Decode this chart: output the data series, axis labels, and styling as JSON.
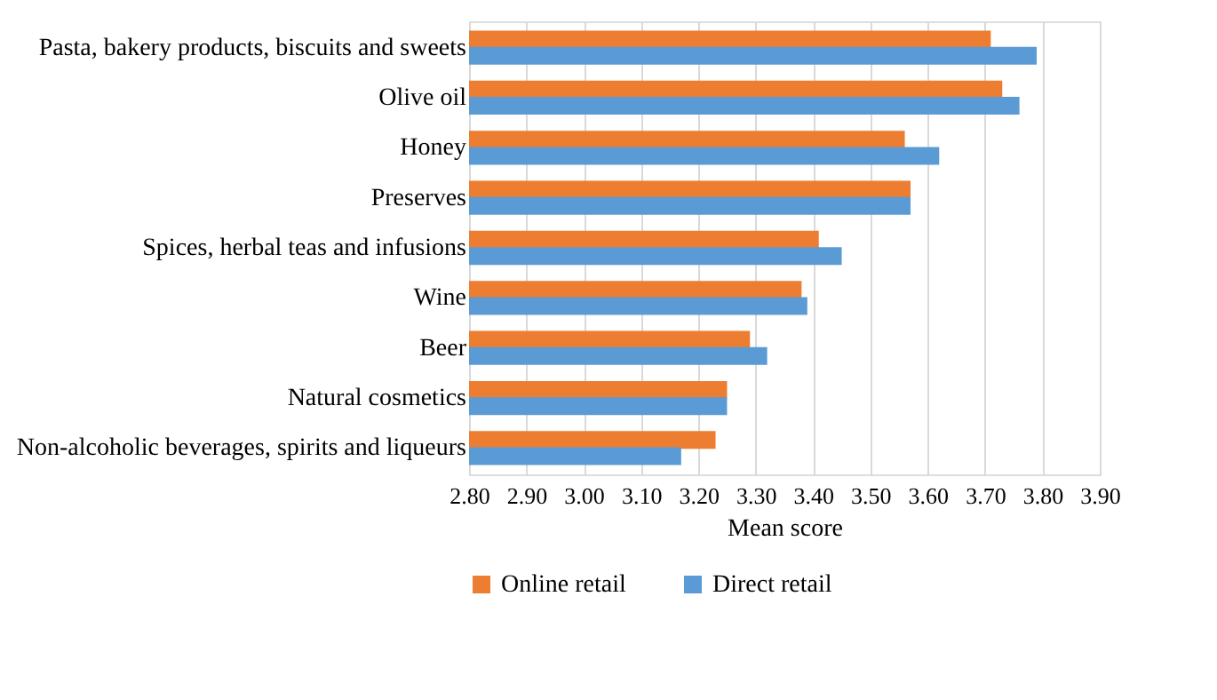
{
  "chart_data": {
    "type": "bar",
    "orientation": "horizontal",
    "xlabel": "Mean score",
    "categories": [
      "Pasta, bakery products, biscuits and sweets",
      "Olive oil",
      "Honey",
      "Preserves",
      "Spices, herbal teas and infusions",
      "Wine",
      "Beer",
      "Natural cosmetics",
      "Non-alcoholic beverages, spirits and liqueurs"
    ],
    "series": [
      {
        "name": "Online retail",
        "color": "#ed7d31",
        "values": [
          3.71,
          3.73,
          3.56,
          3.57,
          3.41,
          3.38,
          3.29,
          3.25,
          3.23
        ]
      },
      {
        "name": "Direct retail",
        "color": "#5b9bd5",
        "values": [
          3.79,
          3.76,
          3.62,
          3.57,
          3.45,
          3.39,
          3.32,
          3.25,
          3.17
        ]
      }
    ],
    "xlim": [
      2.8,
      3.9
    ],
    "xticks": [
      {
        "value": 2.8,
        "label": "2.80"
      },
      {
        "value": 2.9,
        "label": "2.90"
      },
      {
        "value": 3.0,
        "label": "3.00"
      },
      {
        "value": 3.1,
        "label": "3.10"
      },
      {
        "value": 3.2,
        "label": "3.20"
      },
      {
        "value": 3.3,
        "label": "3.30"
      },
      {
        "value": 3.4,
        "label": "3.40"
      },
      {
        "value": 3.5,
        "label": "3.50"
      },
      {
        "value": 3.6,
        "label": "3.60"
      },
      {
        "value": 3.7,
        "label": "3.70"
      },
      {
        "value": 3.8,
        "label": "3.80"
      },
      {
        "value": 3.9,
        "label": "3.90"
      }
    ],
    "grid": "x",
    "legend": "bottom"
  }
}
